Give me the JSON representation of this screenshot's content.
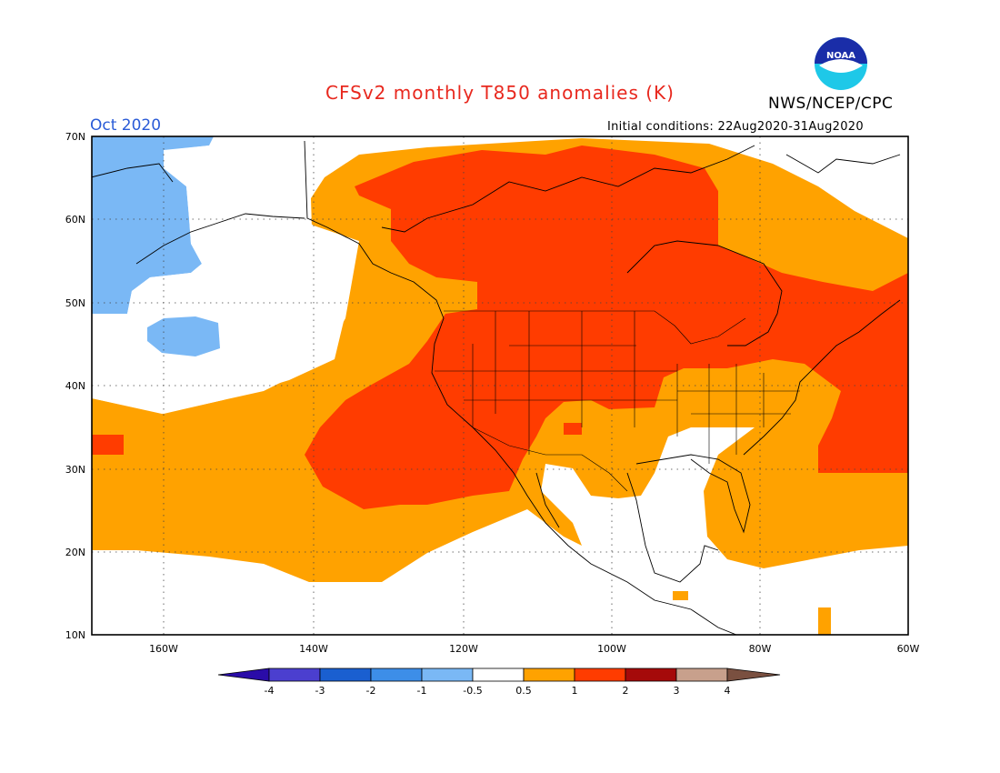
{
  "header": {
    "title": "CFSv2 monthly T850 anomalies (K)",
    "month": "Oct 2020",
    "initial_conditions": "Initial conditions: 22Aug2020-31Aug2020",
    "agency": "NWS/NCEP/CPC",
    "logo_text": "NOAA"
  },
  "map": {
    "lat_labels": [
      "70N",
      "60N",
      "50N",
      "40N",
      "30N",
      "20N",
      "10N"
    ],
    "lon_labels": [
      "160W",
      "140W",
      "120W",
      "100W",
      "80W",
      "60W"
    ]
  },
  "legend": {
    "tick_labels": [
      "-4",
      "-3",
      "-2",
      "-1",
      "-0.5",
      "0.5",
      "1",
      "2",
      "3",
      "4"
    ],
    "colors": [
      "#2a0ca8",
      "#4b3fcf",
      "#1a5fd0",
      "#3d8ee8",
      "#7ab8f5",
      "#ffffff",
      "#ffa200",
      "#ff3c00",
      "#a50a0a",
      "#c8a08c",
      "#7a5040"
    ]
  }
}
